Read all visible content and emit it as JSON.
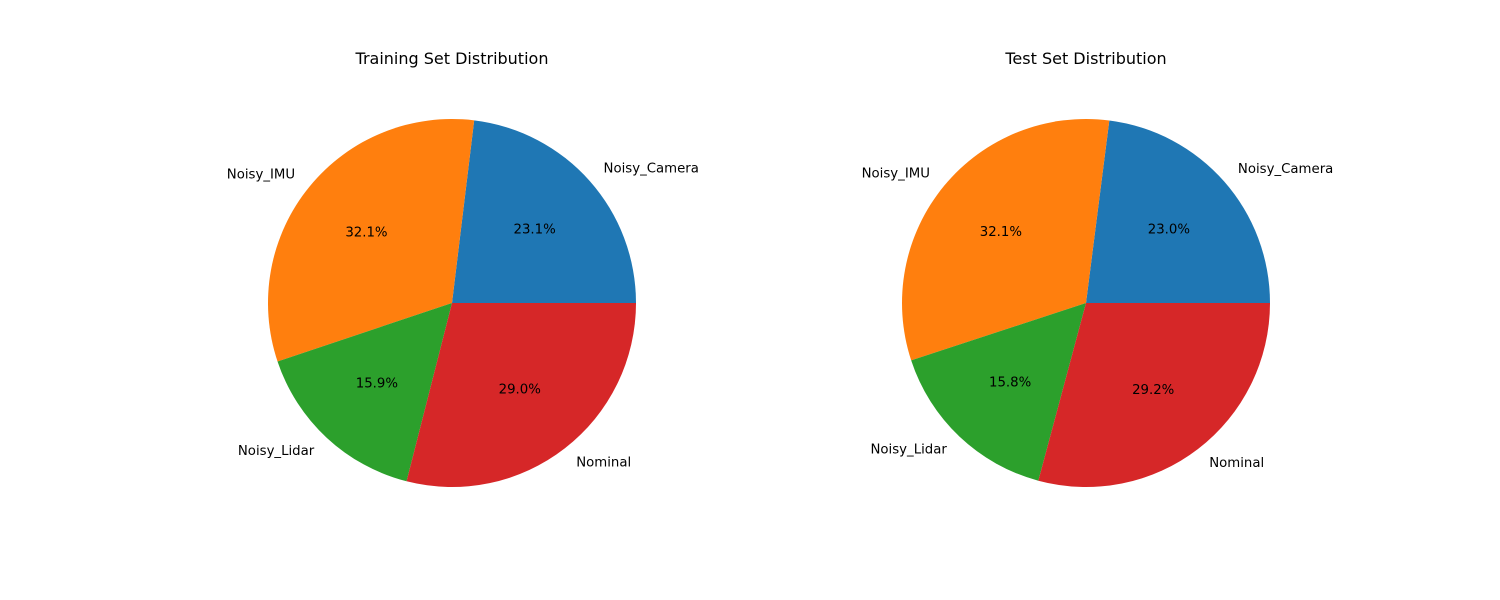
{
  "chart_data": [
    {
      "type": "pie",
      "title": "Training Set Distribution",
      "categories": [
        "Noisy_Camera",
        "Noisy_IMU",
        "Noisy_Lidar",
        "Nominal"
      ],
      "values": [
        23.1,
        32.1,
        15.9,
        29.0
      ],
      "value_labels": [
        "23.1%",
        "32.1%",
        "15.9%",
        "29.0%"
      ],
      "colors": [
        "#1f77b4",
        "#ff7f0e",
        "#2ca02c",
        "#d62728"
      ],
      "start_angle_deg": 0,
      "direction": "counterclockwise"
    },
    {
      "type": "pie",
      "title": "Test Set Distribution",
      "categories": [
        "Noisy_Camera",
        "Noisy_IMU",
        "Noisy_Lidar",
        "Nominal"
      ],
      "values": [
        23.0,
        32.1,
        15.8,
        29.2
      ],
      "value_labels": [
        "23.0%",
        "32.1%",
        "15.8%",
        "29.2%"
      ],
      "colors": [
        "#1f77b4",
        "#ff7f0e",
        "#2ca02c",
        "#d62728"
      ],
      "start_angle_deg": 0,
      "direction": "counterclockwise"
    }
  ]
}
